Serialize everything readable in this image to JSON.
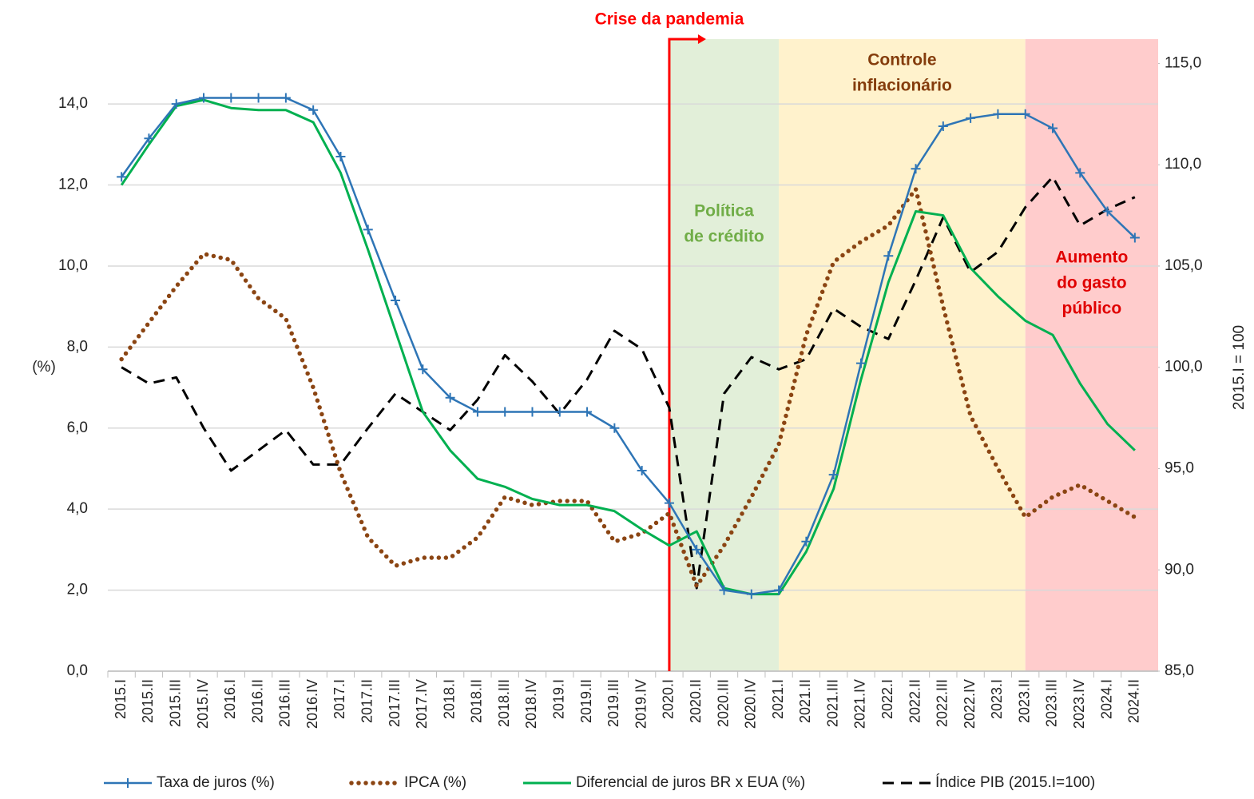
{
  "chart_data": {
    "type": "line",
    "y_label": "(%)",
    "y2_label": "2015.I = 100",
    "categories": [
      "2015.I",
      "2015.II",
      "2015.III",
      "2015.IV",
      "2016.I",
      "2016.II",
      "2016.III",
      "2016.IV",
      "2017.I",
      "2017.II",
      "2017.III",
      "2017.IV",
      "2018.I",
      "2018.II",
      "2018.III",
      "2018.IV",
      "2019.I",
      "2019.II",
      "2019.III",
      "2019.IV",
      "2020.I",
      "2020.II",
      "2020.III",
      "2020.IV",
      "2021.I",
      "2021.II",
      "2021.III",
      "2021.IV",
      "2022.I",
      "2022.II",
      "2022.III",
      "2022.IV",
      "2023.I",
      "2023.II",
      "2023.III",
      "2023.IV",
      "2024.I",
      "2024.II"
    ],
    "series": [
      {
        "name": "Taxa de juros (%)",
        "color": "#2e75b6",
        "style": "solid-plus",
        "axis": "y",
        "values": [
          12.2,
          13.15,
          14.0,
          14.15,
          14.15,
          14.15,
          14.15,
          13.85,
          12.7,
          10.9,
          9.15,
          7.45,
          6.75,
          6.4,
          6.4,
          6.4,
          6.4,
          6.4,
          6.0,
          4.95,
          4.15,
          3.0,
          2.0,
          1.9,
          2.0,
          3.2,
          4.85,
          7.6,
          10.25,
          12.4,
          13.45,
          13.65,
          13.75,
          13.75,
          13.4,
          12.3,
          11.35,
          10.7
        ]
      },
      {
        "name": "IPCA (%)",
        "color": "#8b4513",
        "style": "dotted",
        "axis": "y",
        "values": [
          7.7,
          8.6,
          9.5,
          10.3,
          10.15,
          9.2,
          8.7,
          7.0,
          4.9,
          3.3,
          2.6,
          2.8,
          2.8,
          3.3,
          4.3,
          4.1,
          4.2,
          4.2,
          3.2,
          3.4,
          3.9,
          2.1,
          3.1,
          4.3,
          5.6,
          8.3,
          10.1,
          10.6,
          11.0,
          11.9,
          9.0,
          6.3,
          5.0,
          3.8,
          4.3,
          4.6,
          4.2,
          3.8
        ]
      },
      {
        "name": "Diferencial de juros BR x EUA (%)",
        "color": "#00b050",
        "style": "solid",
        "axis": "y",
        "values": [
          12.0,
          13.0,
          13.95,
          14.1,
          13.9,
          13.85,
          13.85,
          13.55,
          12.3,
          10.4,
          8.4,
          6.4,
          5.45,
          4.75,
          4.55,
          4.25,
          4.1,
          4.1,
          3.95,
          3.5,
          3.1,
          3.45,
          2.05,
          1.9,
          1.9,
          2.95,
          4.5,
          7.2,
          9.6,
          11.35,
          11.25,
          9.95,
          9.25,
          8.65,
          8.3,
          7.1,
          6.1,
          5.45
        ]
      },
      {
        "name": "Índice PIB (2015.I=100)",
        "color": "#000000",
        "style": "dashed",
        "axis": "y2",
        "values": [
          100.0,
          99.2,
          99.5,
          97.0,
          94.9,
          95.9,
          96.9,
          95.2,
          95.2,
          97.0,
          98.7,
          97.8,
          96.9,
          98.4,
          100.6,
          99.3,
          97.7,
          99.4,
          101.8,
          100.9,
          98.0,
          89.1,
          98.7,
          100.5,
          99.9,
          100.4,
          102.9,
          102.0,
          101.4,
          104.3,
          107.4,
          104.7,
          105.7,
          107.9,
          109.4,
          107.0,
          107.8,
          108.4
        ]
      }
    ],
    "ylim": [
      0,
      15.6
    ],
    "yticks": [
      {
        "value": 0,
        "label": "0,0"
      },
      {
        "value": 2,
        "label": "2,0"
      },
      {
        "value": 4,
        "label": "4,0"
      },
      {
        "value": 6,
        "label": "6,0"
      },
      {
        "value": 8,
        "label": "8,0"
      },
      {
        "value": 10,
        "label": "10,0"
      },
      {
        "value": 12,
        "label": "12,0"
      },
      {
        "value": 14,
        "label": "14,0"
      }
    ],
    "y2lim": [
      85,
      116.2
    ],
    "y2ticks": [
      {
        "value": 85,
        "label": "85,0"
      },
      {
        "value": 90,
        "label": "90,0"
      },
      {
        "value": 95,
        "label": "95,0"
      },
      {
        "value": 100,
        "label": "100,0"
      },
      {
        "value": 105,
        "label": "105,0"
      },
      {
        "value": 110,
        "label": "110,0"
      },
      {
        "value": 115,
        "label": "115,0"
      }
    ],
    "grid": true,
    "legend": "bottom",
    "event": {
      "label": "Crise da pandemia",
      "at": "2020.I",
      "color": "#ff0000"
    },
    "regions": [
      {
        "label": [
          "Política",
          "de crédito"
        ],
        "start": "2020.I",
        "end": "2021.I",
        "color": "#e2efd9",
        "text_color": "#70ad47"
      },
      {
        "label": [
          "Controle",
          "inflacionário"
        ],
        "start": "2021.I",
        "end": "2023.II",
        "color": "#fff2cc",
        "text_color": "#843c0c"
      },
      {
        "label": [
          "Aumento",
          "do gasto",
          "público"
        ],
        "start": "2023.II",
        "end": "2024.II",
        "color": "#ffcccc",
        "text_color": "#e00000"
      }
    ]
  }
}
